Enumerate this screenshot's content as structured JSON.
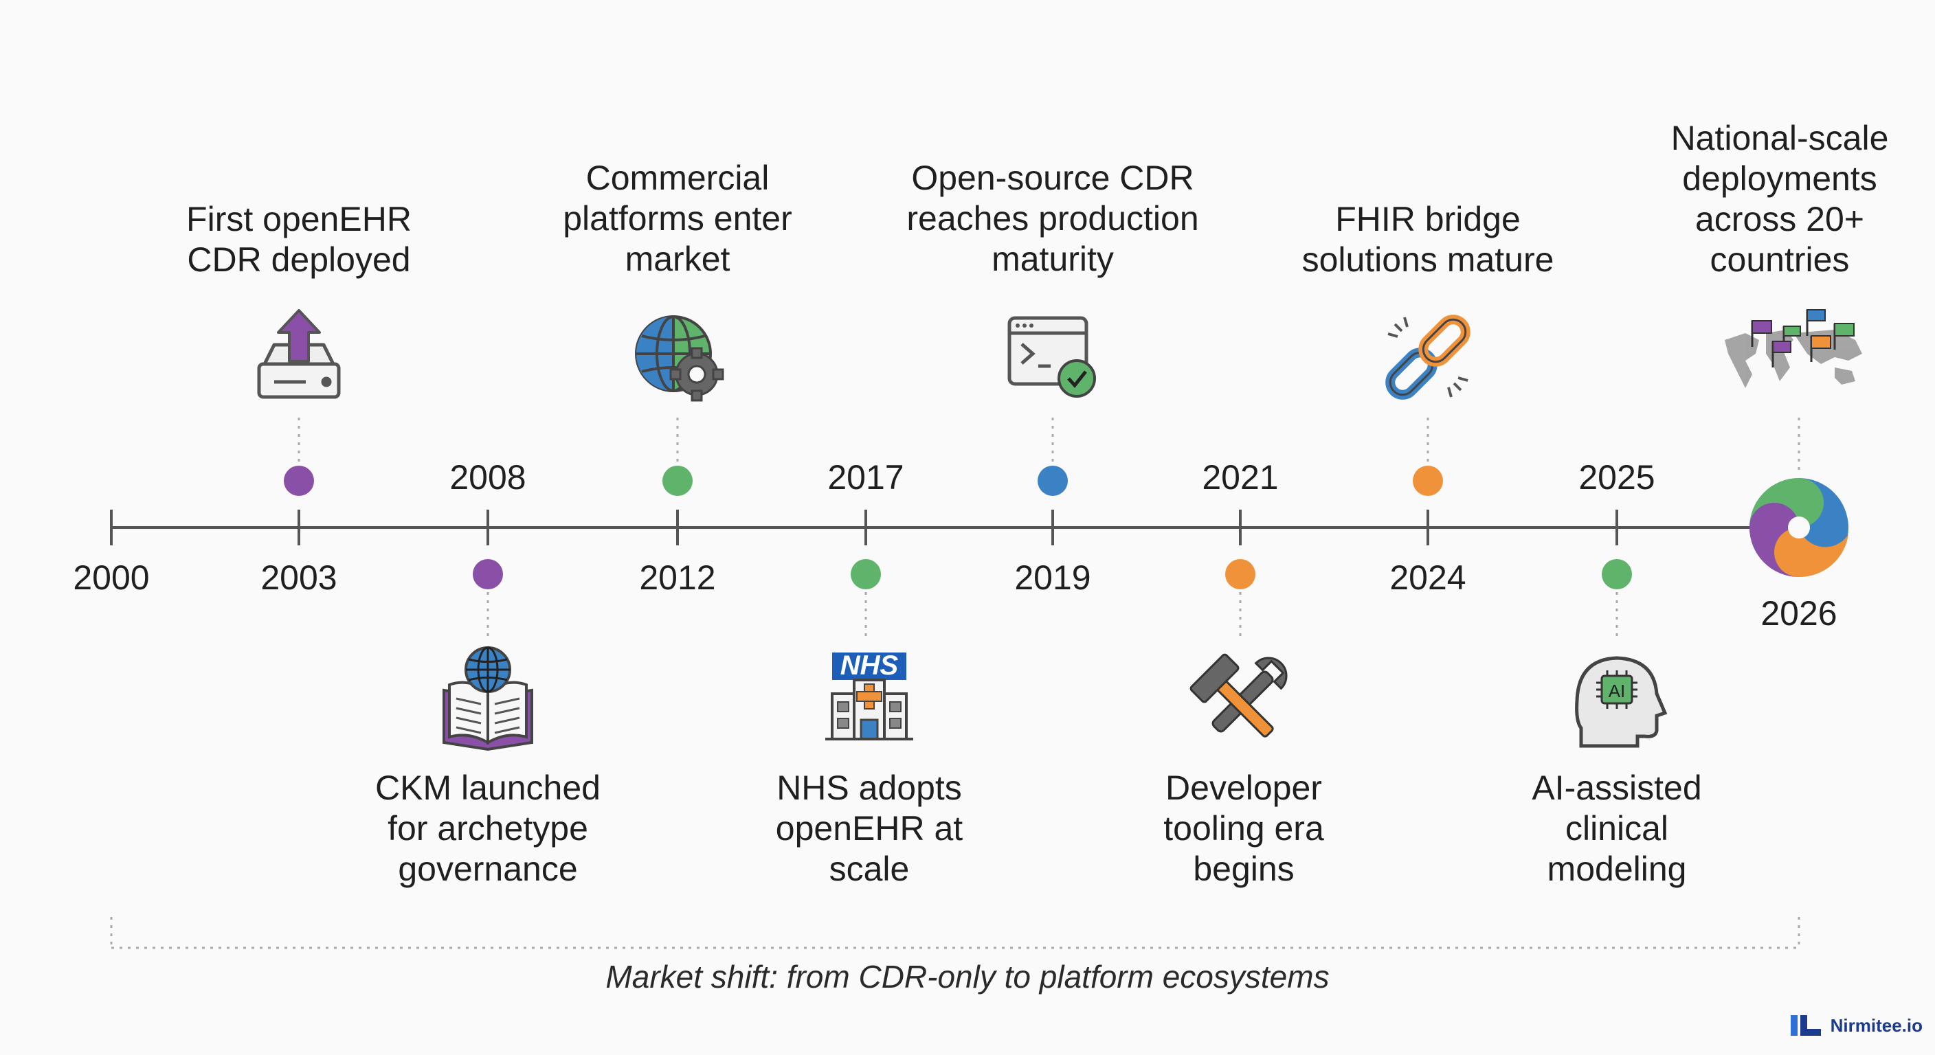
{
  "years": {
    "y2000": "2000",
    "y2003": "2003",
    "y2008": "2008",
    "y2012": "2012",
    "y2017": "2017",
    "y2019": "2019",
    "y2021": "2021",
    "y2024": "2024",
    "y2025": "2025",
    "y2026": "2026"
  },
  "events": {
    "e2003": "First openEHR\nCDR deployed",
    "e2008": "CKM launched\nfor archetype\ngovernance",
    "e2012": "Commercial\nplatforms enter\nmarket",
    "e2017": "NHS adopts\nopenEHR at\nscale",
    "e2019": "Open-source CDR\nreaches production\nmaturity",
    "e2021": "Developer\ntooling era\nbegins",
    "e2024": "FHIR bridge\nsolutions mature",
    "e2025": "AI-assisted\nclinical\nmodeling",
    "e2026": "National-scale\ndeployments\nacross 20+\ncountries"
  },
  "icon_labels": {
    "nhs": "NHS",
    "ai": "AI"
  },
  "colors": {
    "purple": "#8a4fa6",
    "green": "#5fb36b",
    "blue": "#3b82c4",
    "orange": "#f0923a",
    "line": "#555555"
  },
  "caption": "Market shift: from CDR-only to platform ecosystems",
  "brand": "Nirmitee.io"
}
